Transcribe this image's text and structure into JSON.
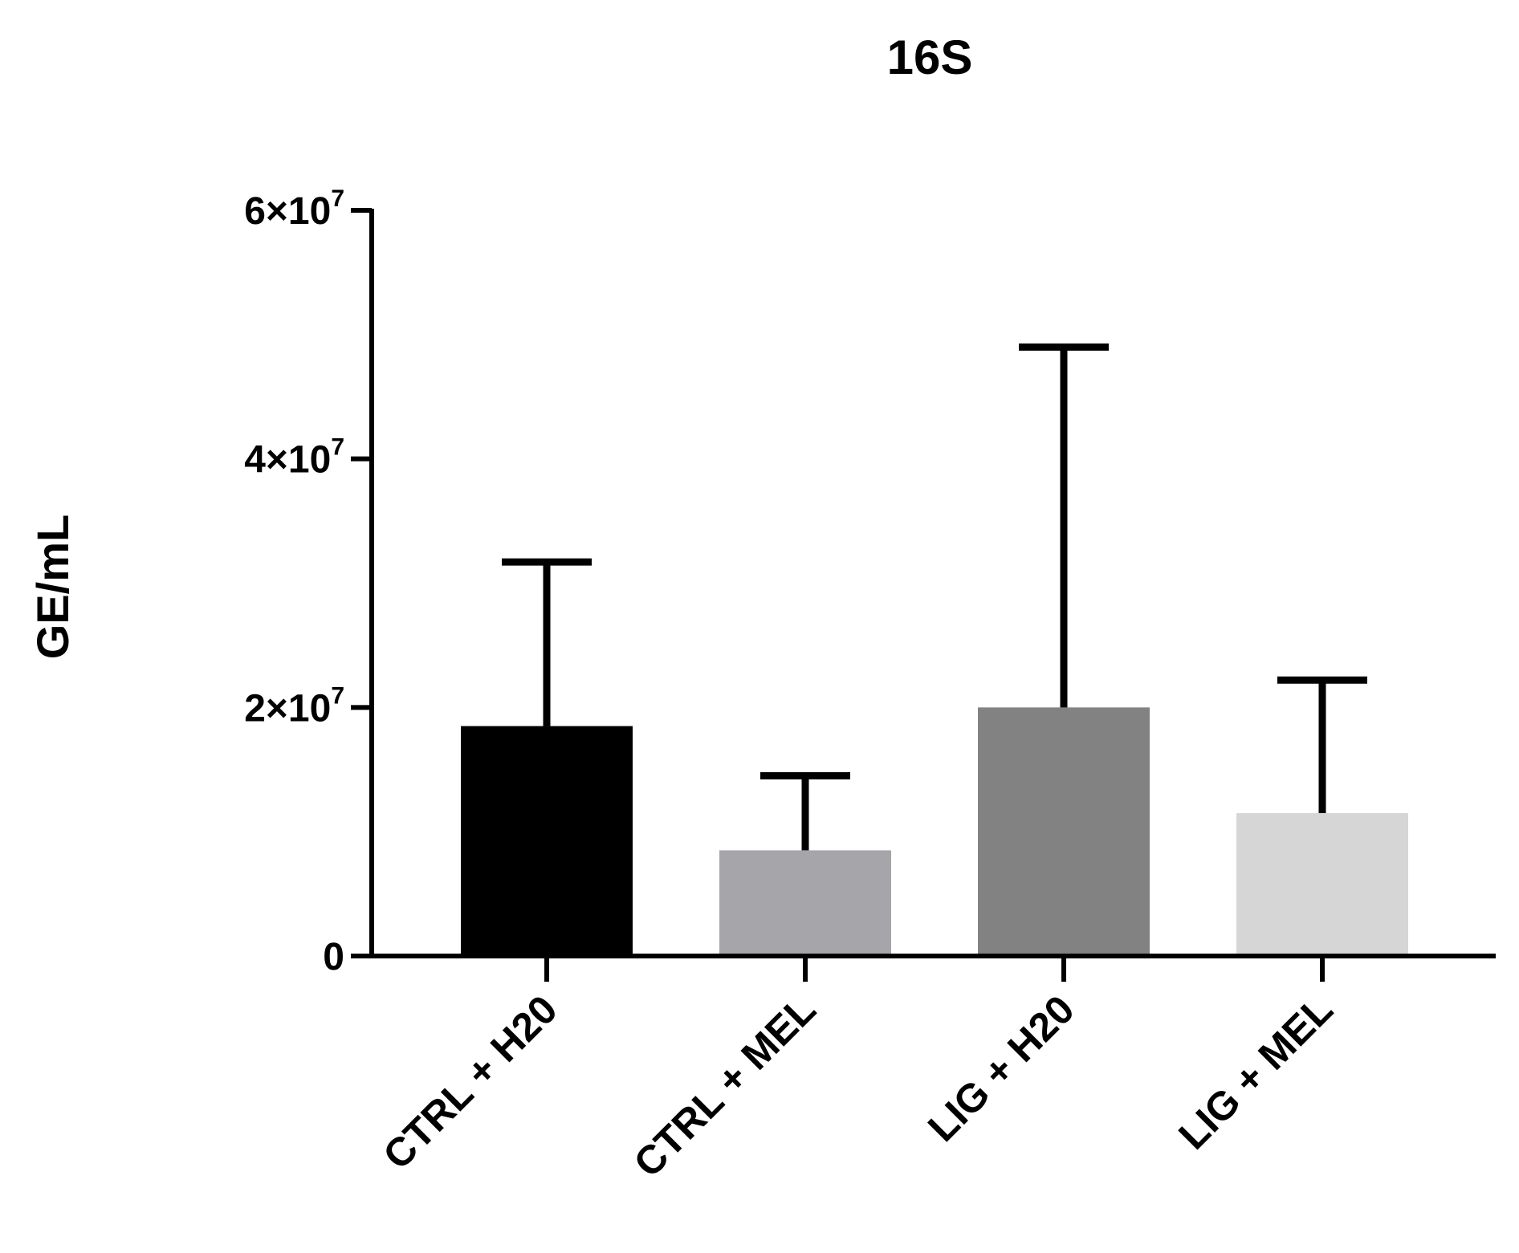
{
  "chart_data": {
    "type": "bar",
    "title": "16S",
    "xlabel": "",
    "ylabel": "GE/mL",
    "ylim": [
      0,
      60000000
    ],
    "yticks": [
      {
        "value": 0,
        "mantissa": "0",
        "exponent": ""
      },
      {
        "value": 20000000,
        "mantissa": "2×10",
        "exponent": "7"
      },
      {
        "value": 40000000,
        "mantissa": "4×10",
        "exponent": "7"
      },
      {
        "value": 60000000,
        "mantissa": "6×10",
        "exponent": "7"
      }
    ],
    "categories": [
      "CTRL + H20",
      "CTRL + MEL",
      "LIG + H20",
      "LIG + MEL"
    ],
    "values": [
      18500000,
      8500000,
      20000000,
      11500000
    ],
    "error_upper": [
      31700000,
      14500000,
      49000000,
      22200000
    ],
    "colors": [
      "#000000",
      "#a6a5aa",
      "#828282",
      "#d6d6d6"
    ],
    "grid": false
  }
}
